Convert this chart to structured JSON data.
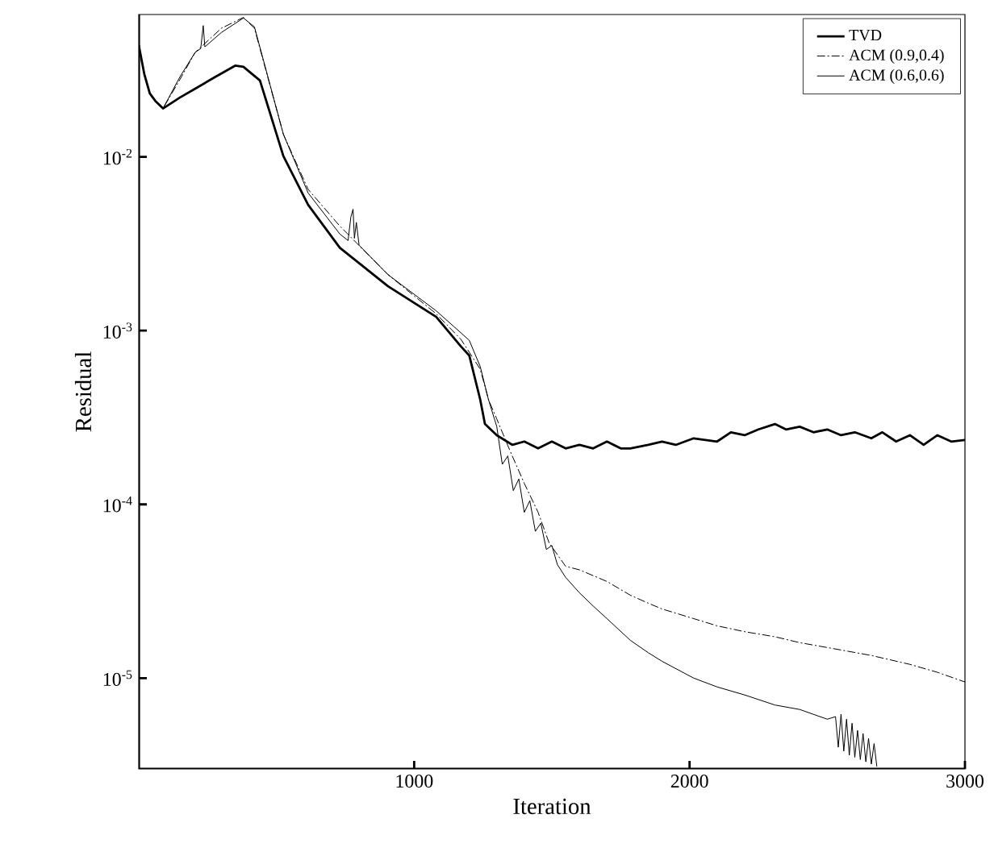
{
  "chart_data": {
    "type": "line",
    "xlabel": "Iteration",
    "ylabel": "Residual",
    "log": "y",
    "legend": "top right",
    "grid": false,
    "marker": "none",
    "xlim": [
      0,
      3000
    ],
    "xticks": [
      1000,
      2000,
      3000
    ],
    "ylim": [
      3e-06,
      0.066
    ],
    "yticks": [
      {
        "value": 0.01,
        "label": "10$^{-2}$"
      },
      {
        "value": 0.001,
        "label": "10$^{-3}$"
      },
      {
        "value": 0.0001,
        "label": "10$^{-4}$"
      },
      {
        "value": 1e-05,
        "label": "10$^{-5}$"
      }
    ],
    "series": [
      {
        "name": "TVD",
        "color": "#000000",
        "line_style": "solid",
        "x": [
          0,
          20,
          40,
          60,
          88,
          150,
          205,
          280,
          350,
          380,
          440,
          525,
          615,
          730,
          905,
          1080,
          1170,
          1200,
          1240,
          1257,
          1300,
          1357,
          1400,
          1450,
          1500,
          1550,
          1600,
          1650,
          1700,
          1750,
          1785,
          1850,
          1900,
          1950,
          2015,
          2100,
          2150,
          2200,
          2250,
          2310,
          2350,
          2400,
          2450,
          2500,
          2550,
          2600,
          2660,
          2700,
          2750,
          2800,
          2850,
          2900,
          2950,
          3000
        ],
        "values": [
          0.044,
          0.03,
          0.0232,
          0.021,
          0.019,
          0.022,
          0.0247,
          0.029,
          0.0335,
          0.033,
          0.0275,
          0.0101,
          0.0053,
          0.003,
          0.0018,
          0.0012,
          0.00081,
          0.00072,
          0.0004,
          0.00029,
          0.00025,
          0.00022,
          0.00023,
          0.00021,
          0.00023,
          0.00021,
          0.00022,
          0.00021,
          0.00023,
          0.00021,
          0.00021,
          0.00022,
          0.00023,
          0.00022,
          0.00024,
          0.00023,
          0.00026,
          0.00025,
          0.00027,
          0.00029,
          0.00027,
          0.00028,
          0.00026,
          0.00027,
          0.00025,
          0.00026,
          0.00024,
          0.00026,
          0.00023,
          0.00025,
          0.00022,
          0.00025,
          0.00023,
          0.000235
        ]
      },
      {
        "name": "ACM (0.9,0.4)",
        "color": "#000000",
        "line_style": "dashdot",
        "x": [
          0,
          20,
          40,
          60,
          88,
          150,
          205,
          300,
          380,
          420,
          525,
          615,
          730,
          905,
          1080,
          1170,
          1240,
          1270,
          1300,
          1350,
          1400,
          1450,
          1490,
          1550,
          1600,
          1700,
          1785,
          1850,
          1900,
          2015,
          2100,
          2200,
          2310,
          2400,
          2500,
          2660,
          2800,
          2900,
          3000
        ],
        "values": [
          0.044,
          0.03,
          0.0232,
          0.021,
          0.019,
          0.028,
          0.04,
          0.055,
          0.0635,
          0.055,
          0.0135,
          0.0065,
          0.004,
          0.0021,
          0.00125,
          0.00089,
          0.0006,
          0.0004,
          0.00031,
          0.0002,
          0.000132,
          9e-05,
          6e-05,
          4.4e-05,
          4.2e-05,
          3.6e-05,
          3e-05,
          2.7e-05,
          2.5e-05,
          2.2e-05,
          2e-05,
          1.85e-05,
          1.73e-05,
          1.6e-05,
          1.5e-05,
          1.35e-05,
          1.2e-05,
          1.08e-05,
          9.5e-06
        ]
      },
      {
        "name": "ACM (0.6,0.6)",
        "color": "#000000",
        "line_style": "solid",
        "x": [
          0,
          20,
          40,
          60,
          88,
          150,
          205,
          225,
          234,
          240,
          300,
          380,
          420,
          525,
          615,
          730,
          760,
          770,
          778,
          783,
          790,
          800,
          905,
          1080,
          1200,
          1240,
          1270,
          1300,
          1320,
          1340,
          1360,
          1380,
          1400,
          1420,
          1440,
          1460,
          1480,
          1500,
          1520,
          1550,
          1600,
          1650,
          1700,
          1785,
          1850,
          1900,
          2015,
          2100,
          2200,
          2310,
          2400,
          2500,
          2530,
          2540,
          2550,
          2560,
          2570,
          2580,
          2590,
          2600,
          2610,
          2620,
          2630,
          2640,
          2650,
          2660,
          2670,
          2680
        ],
        "values": [
          0.044,
          0.03,
          0.0232,
          0.021,
          0.019,
          0.029,
          0.04,
          0.042,
          0.057,
          0.043,
          0.052,
          0.063,
          0.056,
          0.0135,
          0.0062,
          0.0036,
          0.0033,
          0.0045,
          0.005,
          0.0034,
          0.0042,
          0.0031,
          0.0021,
          0.0013,
          0.00088,
          0.00062,
          0.0004,
          0.00028,
          0.00017,
          0.00019,
          0.00012,
          0.00014,
          9e-05,
          0.000105,
          7e-05,
          7.8e-05,
          5.5e-05,
          5.8e-05,
          4.5e-05,
          3.8e-05,
          3.1e-05,
          2.6e-05,
          2.2e-05,
          1.65e-05,
          1.4e-05,
          1.25e-05,
          1e-05,
          8.9e-06,
          8e-06,
          7e-06,
          6.6e-06,
          5.8e-06,
          6e-06,
          4e-06,
          6.2e-06,
          3.8e-06,
          5.8e-06,
          3.6e-06,
          5.5e-06,
          3.5e-06,
          5e-06,
          3.4e-06,
          4.8e-06,
          3.3e-06,
          4.5e-06,
          3.2e-06,
          4.2e-06,
          3.1e-06
        ]
      }
    ]
  }
}
